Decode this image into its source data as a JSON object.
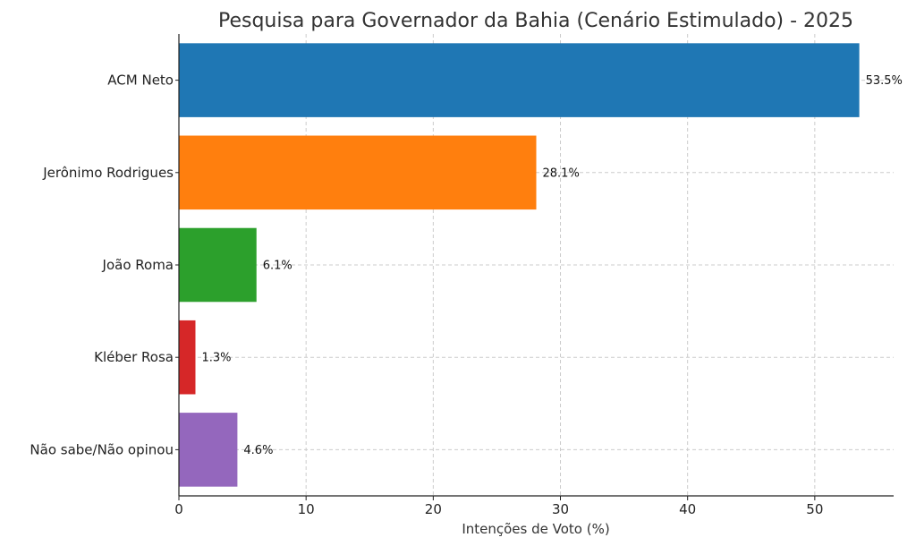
{
  "chart_data": {
    "type": "bar",
    "orientation": "horizontal",
    "title": "Pesquisa para Governador da Bahia (Cenário Estimulado) - 2025",
    "xlabel": "Intenções de Voto (%)",
    "ylabel": "",
    "categories": [
      "ACM Neto",
      "Jerônimo Rodrigues",
      "João Roma",
      "Kléber Rosa",
      "Não sabe/Não opinou"
    ],
    "values": [
      53.5,
      28.1,
      6.1,
      1.3,
      4.6
    ],
    "value_labels": [
      "53.5%",
      "28.1%",
      "6.1%",
      "1.3%",
      "4.6%"
    ],
    "colors": [
      "#1f77b4",
      "#ff7f0e",
      "#2ca02c",
      "#d62728",
      "#9467bd"
    ],
    "xlim": [
      0,
      56.2
    ],
    "xticks": [
      0,
      10,
      20,
      30,
      40,
      50
    ],
    "grid": true
  }
}
